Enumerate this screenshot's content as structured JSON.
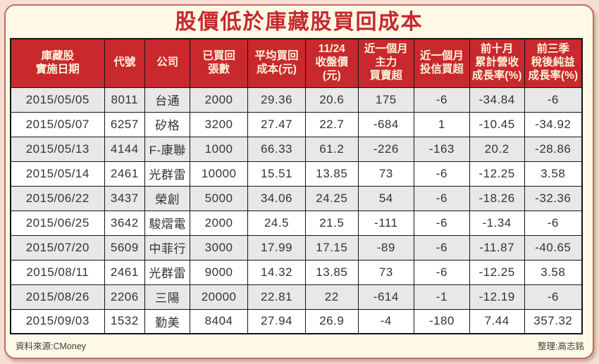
{
  "page": {
    "title": "股價低於庫藏股買回成本",
    "footer": {
      "source": "資料來源:CMoney",
      "compiled_by": "整理:高志銘"
    }
  },
  "colors": {
    "page_background": "#f5ded2",
    "panel_background": "#fdf9e6",
    "panel_border": "#c8695f",
    "title_red": "#c5282c",
    "header_background": "#c9282d",
    "header_text": "#fcf3da",
    "row_odd": "#e8e8e8",
    "row_even": "#ffffff",
    "grid_line": "#151515"
  },
  "chart_data": {
    "type": "table",
    "title": "股價低於庫藏股買回成本",
    "columns": [
      "庫藏股實施日期",
      "代號",
      "公司",
      "已買回張數",
      "平均買回成本(元)",
      "11/24收盤價(元)",
      "近一個月主力買賣超",
      "近一個月投信買超",
      "前十月累計營收成長率(%)",
      "前三季稅後純益成長率(%)"
    ],
    "header_lines": [
      [
        "庫藏股",
        "實施日期"
      ],
      [
        "代號"
      ],
      [
        "公司"
      ],
      [
        "已買回",
        "張數"
      ],
      [
        "平均買回",
        "成本(元)"
      ],
      [
        "11/24",
        "收盤價",
        "(元)"
      ],
      [
        "近一個月",
        "主力",
        "買賣超"
      ],
      [
        "近一個月",
        "投信買超"
      ],
      [
        "前十月",
        "累計營收",
        "成長率(%)"
      ],
      [
        "前三季",
        "稅後純益",
        "成長率(%)"
      ]
    ],
    "rows": [
      [
        "2015/05/05",
        "8011",
        "台通",
        "2000",
        "29.36",
        "20.6",
        "175",
        "-6",
        "-34.84",
        "-6"
      ],
      [
        "2015/05/07",
        "6257",
        "矽格",
        "3200",
        "27.47",
        "22.7",
        "-684",
        "1",
        "-10.45",
        "-34.92"
      ],
      [
        "2015/05/13",
        "4144",
        "F-康聯",
        "1000",
        "66.33",
        "61.2",
        "-226",
        "-163",
        "20.2",
        "-28.86"
      ],
      [
        "2015/05/14",
        "2461",
        "光群雷",
        "10000",
        "15.51",
        "13.85",
        "73",
        "-6",
        "-12.25",
        "3.58"
      ],
      [
        "2015/06/22",
        "3437",
        "榮創",
        "5000",
        "34.06",
        "24.25",
        "54",
        "-6",
        "-18.26",
        "-32.36"
      ],
      [
        "2015/06/25",
        "3642",
        "駿熠電",
        "2000",
        "24.5",
        "21.5",
        "-111",
        "-6",
        "-1.34",
        "-6"
      ],
      [
        "2015/07/20",
        "5609",
        "中菲行",
        "3000",
        "17.99",
        "17.15",
        "-89",
        "-6",
        "-11.87",
        "-40.65"
      ],
      [
        "2015/08/11",
        "2461",
        "光群雷",
        "9000",
        "14.32",
        "13.85",
        "73",
        "-6",
        "-12.25",
        "3.58"
      ],
      [
        "2015/08/26",
        "2206",
        "三陽",
        "20000",
        "22.81",
        "22",
        "-614",
        "-1",
        "-12.19",
        "-6"
      ],
      [
        "2015/09/03",
        "1532",
        "勤美",
        "8404",
        "27.94",
        "26.9",
        "-4",
        "-180",
        "7.44",
        "357.32"
      ]
    ],
    "source": "CMoney",
    "compiled_by": "高志銘",
    "layout": {
      "column_width_percent": [
        16.4,
        7.1,
        7.9,
        10.1,
        10.1,
        9.2,
        9.8,
        9.7,
        9.6,
        10.1
      ],
      "striping": "odd-rows-gray",
      "grid": true
    }
  }
}
